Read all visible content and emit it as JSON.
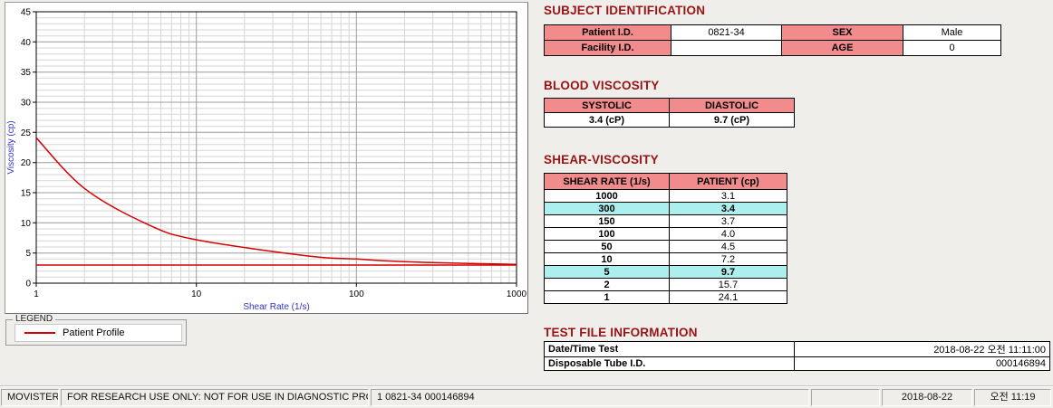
{
  "colors": {
    "heading": "#991414",
    "table_header_bg": "#f28b8b",
    "highlight_bg": "#abf0ef",
    "curve": "#d40000",
    "axis_label": "#3333cc"
  },
  "chart_data": {
    "type": "line",
    "x_scale": "log",
    "xlabel": "Shear Rate (1/s)",
    "ylabel": "Viscosity (cp)",
    "xlim": [
      1,
      1000
    ],
    "ylim": [
      0,
      45
    ],
    "x_ticks": [
      1,
      10,
      100,
      1000
    ],
    "y_tick_step": 5,
    "grid": "fine semi-log graph paper, minor lines every 1 cp and every log subdivision",
    "legend_position": "below-left",
    "series": [
      {
        "name": "Patient Profile",
        "color": "#d40000",
        "x": [
          1,
          2,
          5,
          10,
          50,
          100,
          150,
          300,
          1000
        ],
        "y": [
          24.1,
          15.7,
          9.7,
          7.2,
          4.5,
          4.0,
          3.7,
          3.4,
          3.1
        ]
      },
      {
        "name": "baseline-line",
        "color": "#d40000",
        "x": [
          1,
          1000
        ],
        "y": [
          3.0,
          3.0
        ]
      }
    ]
  },
  "legend": {
    "title": "LEGEND",
    "items": [
      {
        "label": "Patient Profile",
        "color": "#d40000"
      }
    ]
  },
  "subject": {
    "title": "SUBJECT IDENTIFICATION",
    "rows": [
      {
        "label1": "Patient I.D.",
        "value1": "0821-34",
        "label2": "SEX",
        "value2": "Male"
      },
      {
        "label1": "Facility I.D.",
        "value1": "",
        "label2": "AGE",
        "value2": "0"
      }
    ]
  },
  "blood_viscosity": {
    "title": "BLOOD VISCOSITY",
    "headers": [
      "SYSTOLIC",
      "DIASTOLIC"
    ],
    "values": [
      "3.4 (cP)",
      "9.7 (cP)"
    ]
  },
  "shear_viscosity": {
    "title": "SHEAR-VISCOSITY",
    "headers": [
      "SHEAR RATE (1/s)",
      "PATIENT (cp)"
    ],
    "rows": [
      {
        "rate": "1000",
        "value": "3.1",
        "highlight": false
      },
      {
        "rate": "300",
        "value": "3.4",
        "highlight": true
      },
      {
        "rate": "150",
        "value": "3.7",
        "highlight": false
      },
      {
        "rate": "100",
        "value": "4.0",
        "highlight": false
      },
      {
        "rate": "50",
        "value": "4.5",
        "highlight": false
      },
      {
        "rate": "10",
        "value": "7.2",
        "highlight": false
      },
      {
        "rate": "5",
        "value": "9.7",
        "highlight": true
      },
      {
        "rate": "2",
        "value": "15.7",
        "highlight": false
      },
      {
        "rate": "1",
        "value": "24.1",
        "highlight": false
      }
    ]
  },
  "test_file": {
    "title": "TEST FILE INFORMATION",
    "rows": [
      {
        "label": "Date/Time Test",
        "value": "2018-08-22  오전 11:11:00"
      },
      {
        "label": "Disposable Tube I.D.",
        "value": "000146894"
      }
    ]
  },
  "status_bar": {
    "app": "MOVISTER",
    "notice": "FOR RESEARCH USE ONLY: NOT FOR USE IN DIAGNOSTIC PROCEDURES",
    "record": "1  0821-34  000146894",
    "date": "2018-08-22",
    "time": "오전 11:19"
  }
}
